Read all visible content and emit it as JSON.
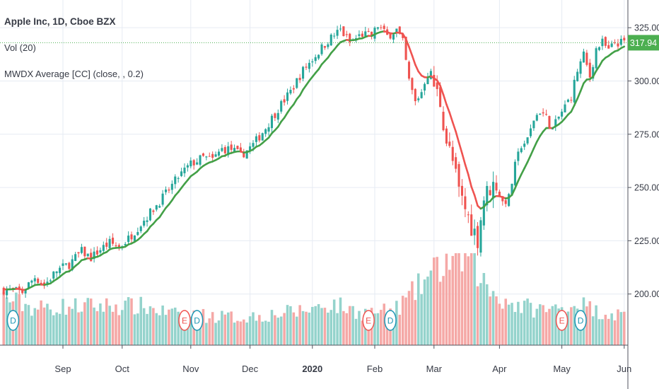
{
  "legend": {
    "title": "Apple Inc, 1D, Cboe BZX",
    "volume": "Vol (20)",
    "indicator": "MWDX Average [CC] (close, , 0.2)"
  },
  "colors": {
    "up": "#26a69a",
    "down": "#ef5350",
    "vol_up": "#94d3cc",
    "vol_down": "#f5a8a6",
    "ma_up": "#43a047",
    "ma_down": "#ef5350",
    "grid": "#e6ebf3",
    "last_price": "#4caf50",
    "event_earnings": "#ef5350",
    "event_dividend": "#1e96b4"
  },
  "chart_data": {
    "type": "candlestick",
    "y_axis": {
      "ticks": [
        200,
        225,
        250,
        275,
        300,
        325
      ],
      "tick_labels": [
        "200.00",
        "225.00",
        "250.00",
        "275.00",
        "300.00",
        "325.00"
      ],
      "range": [
        176,
        338
      ],
      "position": "right"
    },
    "x_axis": {
      "tick_labels": [
        "Sep",
        "Oct",
        "Nov",
        "Dec",
        "2020",
        "Feb",
        "Mar",
        "Apr",
        "May",
        "Jun"
      ]
    },
    "last_price": {
      "value": 317.94,
      "label": "317.94"
    },
    "grid": true,
    "price_path": [
      [
        0,
        202
      ],
      [
        6,
        201
      ],
      [
        10,
        208
      ],
      [
        13,
        204
      ],
      [
        17,
        211
      ],
      [
        21,
        214
      ],
      [
        25,
        220
      ],
      [
        28,
        217
      ],
      [
        31,
        221
      ],
      [
        34,
        224
      ],
      [
        37,
        222
      ],
      [
        40,
        226
      ],
      [
        44,
        233
      ],
      [
        48,
        240
      ],
      [
        52,
        247
      ],
      [
        56,
        255
      ],
      [
        60,
        261
      ],
      [
        64,
        264
      ],
      [
        67,
        263
      ],
      [
        70,
        268
      ],
      [
        73,
        268
      ],
      [
        76,
        265
      ],
      [
        80,
        270
      ],
      [
        84,
        278
      ],
      [
        88,
        287
      ],
      [
        92,
        295
      ],
      [
        96,
        305
      ],
      [
        100,
        312
      ],
      [
        104,
        319
      ],
      [
        108,
        324
      ],
      [
        111,
        318
      ],
      [
        115,
        322
      ],
      [
        118,
        321
      ],
      [
        120,
        326
      ],
      [
        123,
        321
      ],
      [
        126,
        324
      ],
      [
        128,
        318
      ],
      [
        130,
        300
      ],
      [
        132,
        290
      ],
      [
        134,
        295
      ],
      [
        136,
        305
      ],
      [
        138,
        298
      ],
      [
        140,
        290
      ],
      [
        142,
        272
      ],
      [
        144,
        262
      ],
      [
        146,
        248
      ],
      [
        148,
        240
      ],
      [
        150,
        232
      ],
      [
        152,
        226
      ],
      [
        154,
        245
      ],
      [
        156,
        250
      ],
      [
        158,
        252
      ],
      [
        160,
        243
      ],
      [
        162,
        245
      ],
      [
        164,
        260
      ],
      [
        166,
        270
      ],
      [
        168,
        272
      ],
      [
        170,
        282
      ],
      [
        172,
        286
      ],
      [
        174,
        283
      ],
      [
        176,
        277
      ],
      [
        178,
        283
      ],
      [
        180,
        288
      ],
      [
        182,
        293
      ],
      [
        184,
        305
      ],
      [
        186,
        312
      ],
      [
        188,
        302
      ],
      [
        190,
        315
      ],
      [
        192,
        318
      ],
      [
        194,
        314
      ],
      [
        196,
        318
      ],
      [
        198,
        317.94
      ]
    ],
    "volume_path": [
      [
        0,
        0.52
      ],
      [
        10,
        0.4
      ],
      [
        20,
        0.42
      ],
      [
        35,
        0.43
      ],
      [
        45,
        0.42
      ],
      [
        55,
        0.33
      ],
      [
        65,
        0.32
      ],
      [
        75,
        0.3
      ],
      [
        85,
        0.33
      ],
      [
        95,
        0.37
      ],
      [
        105,
        0.45
      ],
      [
        115,
        0.35
      ],
      [
        125,
        0.37
      ],
      [
        130,
        0.52
      ],
      [
        135,
        0.7
      ],
      [
        140,
        0.85
      ],
      [
        145,
        0.97
      ],
      [
        150,
        0.93
      ],
      [
        155,
        0.62
      ],
      [
        160,
        0.5
      ],
      [
        165,
        0.43
      ],
      [
        170,
        0.4
      ],
      [
        175,
        0.38
      ],
      [
        180,
        0.42
      ],
      [
        185,
        0.45
      ],
      [
        190,
        0.37
      ],
      [
        198,
        0.33
      ]
    ],
    "mwdx_alpha": 0.2,
    "events": [
      {
        "type": "dividend",
        "label": "D",
        "bar": 3
      },
      {
        "type": "earnings",
        "label": "E",
        "bar": 58
      },
      {
        "type": "dividend",
        "label": "D",
        "bar": 62
      },
      {
        "type": "earnings",
        "label": "E",
        "bar": 117
      },
      {
        "type": "dividend",
        "label": "D",
        "bar": 124
      },
      {
        "type": "earnings",
        "label": "E",
        "bar": 179
      },
      {
        "type": "dividend",
        "label": "D",
        "bar": 185
      }
    ],
    "month_ticks": [
      {
        "label": "Sep",
        "bar": 19
      },
      {
        "label": "Oct",
        "bar": 38
      },
      {
        "label": "Nov",
        "bar": 60
      },
      {
        "label": "Dec",
        "bar": 79
      },
      {
        "label": "2020",
        "bar": 99,
        "bold": true
      },
      {
        "label": "Feb",
        "bar": 119
      },
      {
        "label": "Mar",
        "bar": 138
      },
      {
        "label": "Apr",
        "bar": 159
      },
      {
        "label": "May",
        "bar": 179
      },
      {
        "label": "Jun",
        "bar": 199
      }
    ]
  }
}
